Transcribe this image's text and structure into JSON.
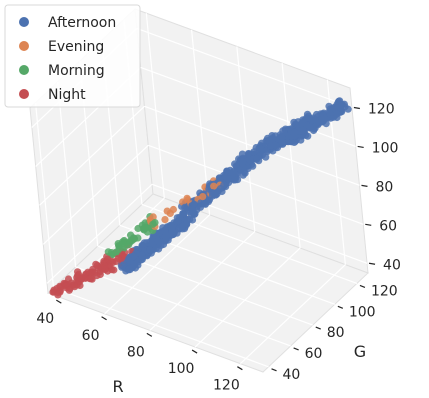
{
  "chart_data": {
    "type": "scatter",
    "projection": "3d",
    "title": "",
    "xlabel": "R",
    "ylabel": "G",
    "zlabel": "",
    "xticks": [
      "40",
      "60",
      "80",
      "100",
      "120"
    ],
    "yticks": [
      "40",
      "60",
      "80",
      "100",
      "120"
    ],
    "zticks": [
      "40",
      "60",
      "80",
      "100",
      "120"
    ],
    "xlim": [
      35,
      130
    ],
    "ylim": [
      35,
      130
    ],
    "zlim": [
      35,
      130
    ],
    "grid": true,
    "legend_position": "top-left",
    "series": [
      {
        "name": "Afternoon",
        "color": "#4c72b0",
        "clusters": [
          {
            "r": [
              60,
              80
            ],
            "g": [
              55,
              75
            ],
            "b": [
              48,
              72
            ],
            "n": 260
          },
          {
            "r": [
              80,
              100
            ],
            "g": [
              75,
              95
            ],
            "b": [
              75,
              98
            ],
            "n": 180
          },
          {
            "r": [
              98,
              120
            ],
            "g": [
              92,
              115
            ],
            "b": [
              98,
              118
            ],
            "n": 160
          },
          {
            "r": [
              108,
              128
            ],
            "g": [
              108,
              126
            ],
            "b": [
              104,
              122
            ],
            "n": 160
          }
        ]
      },
      {
        "name": "Evening",
        "color": "#dd8452",
        "clusters": [
          {
            "r": [
              70,
              90
            ],
            "g": [
              65,
              85
            ],
            "b": [
              70,
              88
            ],
            "n": 25
          }
        ]
      },
      {
        "name": "Morning",
        "color": "#55a868",
        "clusters": [
          {
            "r": [
              55,
              70
            ],
            "g": [
              52,
              66
            ],
            "b": [
              55,
              70
            ],
            "n": 45
          }
        ]
      },
      {
        "name": "Night",
        "color": "#c44e52",
        "clusters": [
          {
            "r": [
              38,
              62
            ],
            "g": [
              36,
              58
            ],
            "b": [
              36,
              55
            ],
            "n": 90
          }
        ]
      }
    ]
  }
}
